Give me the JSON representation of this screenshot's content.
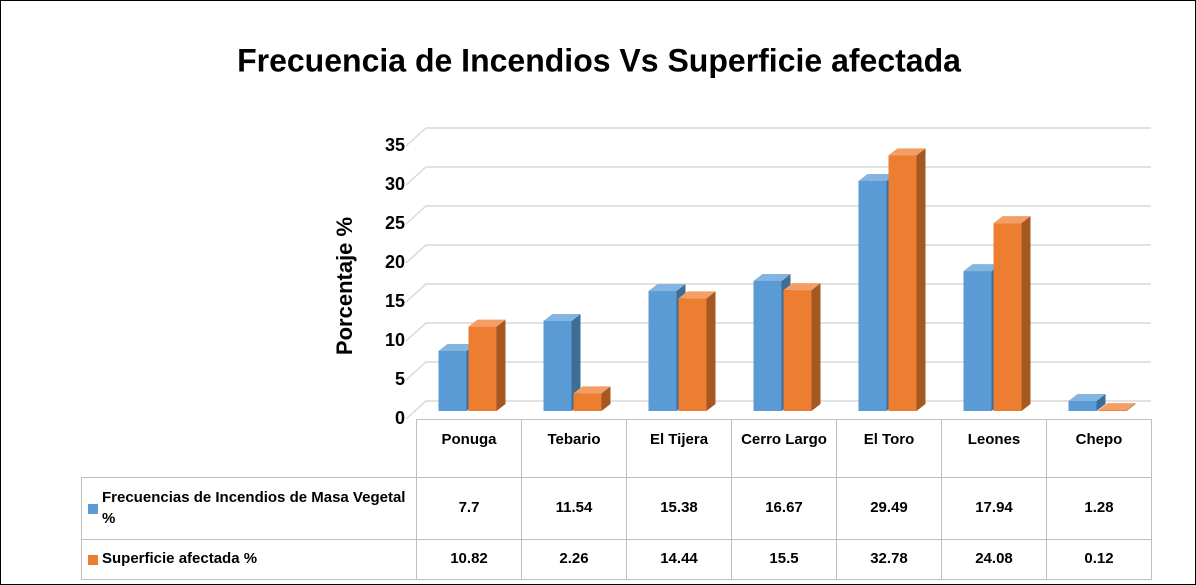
{
  "chart_data": {
    "type": "bar3d",
    "title": "Frecuencia de Incendios Vs Superficie afectada",
    "y_label": "Porcentaje %",
    "categories": [
      "Ponuga",
      "Tebario",
      "El Tijera",
      "Cerro Largo",
      "El Toro",
      "Leones",
      "Chepo"
    ],
    "series": [
      {
        "name": "Frecuencias de Incendios de Masa Vegetal %",
        "color": "#5b9bd5",
        "values": [
          7.7,
          11.54,
          15.38,
          16.67,
          29.49,
          17.94,
          1.28
        ]
      },
      {
        "name": "Superficie afectada %",
        "color": "#ed7d31",
        "values": [
          10.82,
          2.26,
          14.44,
          15.5,
          32.78,
          24.08,
          0.12
        ]
      }
    ],
    "ylim": [
      0,
      35
    ],
    "yticks": [
      0,
      5,
      10,
      15,
      20,
      25,
      30,
      35
    ],
    "grid": true
  }
}
